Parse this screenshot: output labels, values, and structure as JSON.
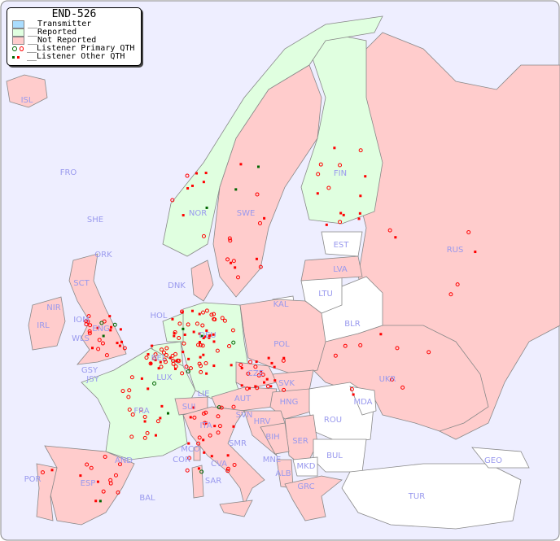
{
  "legend": {
    "title": "END-526",
    "items": [
      {
        "label": "__Transmitter",
        "color": "#aaddff"
      },
      {
        "label": "__Reported",
        "color": "#e0ffe0"
      },
      {
        "label": "__Not Reported",
        "color": "#ffcccc"
      },
      {
        "label": "__Listener Primary QTH",
        "colors": [
          "#006600",
          "#ff0000"
        ]
      },
      {
        "label": "__Listener Other QTH",
        "colors": [
          "#006600",
          "#ff0000"
        ]
      }
    ]
  },
  "colors": {
    "sea": "#eeeeff",
    "label": "#9999ee",
    "primary_marker": "#ff0000",
    "other_marker": "#cc0000",
    "reported_marker": "#006600"
  },
  "countries": [
    {
      "code": "ISL",
      "status": "not_reported"
    },
    {
      "code": "FRO",
      "status": "not_reported"
    },
    {
      "code": "SHE",
      "status": "not_reported"
    },
    {
      "code": "ORK",
      "status": "not_reported"
    },
    {
      "code": "SCT",
      "status": "not_reported"
    },
    {
      "code": "NIR",
      "status": "not_reported"
    },
    {
      "code": "IRL",
      "status": "not_reported"
    },
    {
      "code": "IOM",
      "status": "not_reported"
    },
    {
      "code": "WLS",
      "status": "not_reported"
    },
    {
      "code": "ENG",
      "status": "not_reported"
    },
    {
      "code": "GSY",
      "status": "not_reported"
    },
    {
      "code": "JSY",
      "status": "not_reported"
    },
    {
      "code": "FRA",
      "status": "reported"
    },
    {
      "code": "HOL",
      "status": "reported"
    },
    {
      "code": "BEL",
      "status": "reported"
    },
    {
      "code": "LUX",
      "status": "reported"
    },
    {
      "code": "DEU",
      "status": "reported"
    },
    {
      "code": "DNK",
      "status": "not_reported"
    },
    {
      "code": "NOR",
      "status": "reported"
    },
    {
      "code": "SWE",
      "status": "not_reported"
    },
    {
      "code": "FIN",
      "status": "reported"
    },
    {
      "code": "EST",
      "status": "none"
    },
    {
      "code": "LVA",
      "status": "not_reported"
    },
    {
      "code": "LTU",
      "status": "none"
    },
    {
      "code": "KAL",
      "status": "none"
    },
    {
      "code": "BLR",
      "status": "none"
    },
    {
      "code": "POL",
      "status": "not_reported"
    },
    {
      "code": "CZE",
      "status": "not_reported"
    },
    {
      "code": "SVK",
      "status": "not_reported"
    },
    {
      "code": "AUT",
      "status": "not_reported"
    },
    {
      "code": "HNG",
      "status": "not_reported"
    },
    {
      "code": "SUI",
      "status": "not_reported"
    },
    {
      "code": "LIE",
      "status": "not_reported"
    },
    {
      "code": "ITA",
      "status": "not_reported"
    },
    {
      "code": "SVN",
      "status": "not_reported"
    },
    {
      "code": "HRV",
      "status": "not_reported"
    },
    {
      "code": "BIH",
      "status": "not_reported"
    },
    {
      "code": "SER",
      "status": "not_reported"
    },
    {
      "code": "MNE",
      "status": "not_reported"
    },
    {
      "code": "ALB",
      "status": "not_reported"
    },
    {
      "code": "MKD",
      "status": "none"
    },
    {
      "code": "GRC",
      "status": "not_reported"
    },
    {
      "code": "BUL",
      "status": "none"
    },
    {
      "code": "ROU",
      "status": "none"
    },
    {
      "code": "MDA",
      "status": "none"
    },
    {
      "code": "UKR",
      "status": "not_reported"
    },
    {
      "code": "RUS",
      "status": "not_reported"
    },
    {
      "code": "GEO",
      "status": "none"
    },
    {
      "code": "TUR",
      "status": "none"
    },
    {
      "code": "AND",
      "status": "not_reported"
    },
    {
      "code": "ESP",
      "status": "not_reported"
    },
    {
      "code": "POR",
      "status": "not_reported"
    },
    {
      "code": "BAL",
      "status": "not_reported"
    },
    {
      "code": "COR",
      "status": "not_reported"
    },
    {
      "code": "MCO",
      "status": "not_reported"
    },
    {
      "code": "SMR",
      "status": "not_reported"
    },
    {
      "code": "CVA",
      "status": "not_reported"
    },
    {
      "code": "SAR",
      "status": "not_reported"
    }
  ]
}
